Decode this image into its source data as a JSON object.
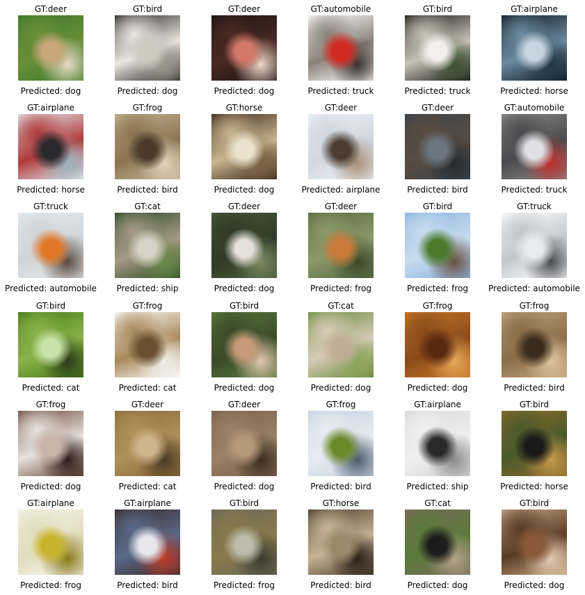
{
  "colors": {
    "background": "#ffffff",
    "text": "#000000"
  },
  "grid": {
    "rows": 6,
    "columns": 6,
    "cells": [
      {
        "gt": "GT:deer",
        "predicted": "Predicted: dog",
        "colors": [
          "#3f7a2a",
          "#c9a77a",
          "#e8dcc8",
          "#6a8f3a"
        ]
      },
      {
        "gt": "GT:bird",
        "predicted": "Predicted: dog",
        "colors": [
          "#2a2a28",
          "#cfcac0",
          "#9a958a",
          "#eae7df"
        ]
      },
      {
        "gt": "GT:deer",
        "predicted": "Predicted: dog",
        "colors": [
          "#1c1412",
          "#d4786a",
          "#f0d8cc",
          "#4a2a22"
        ]
      },
      {
        "gt": "GT:automobile",
        "predicted": "Predicted: truck",
        "colors": [
          "#ffffff",
          "#d02a22",
          "#3a3330",
          "#8a8278"
        ]
      },
      {
        "gt": "GT:bird",
        "predicted": "Predicted: truck",
        "colors": [
          "#1a1d18",
          "#f2f0ea",
          "#3a5030",
          "#c7c2b5"
        ]
      },
      {
        "gt": "GT:airplane",
        "predicted": "Predicted: horse",
        "colors": [
          "#0e1a22",
          "#c8d6e0",
          "#223848",
          "#6c8aa0"
        ]
      },
      {
        "gt": "GT:airplane",
        "predicted": "Predicted: horse",
        "colors": [
          "#e4eef2",
          "#2a2a2c",
          "#9ab4c0",
          "#b03a3a"
        ]
      },
      {
        "gt": "GT:frog",
        "predicted": "Predicted: bird",
        "colors": [
          "#c6b394",
          "#4a3b28",
          "#e2d4bc",
          "#8a7350"
        ]
      },
      {
        "gt": "GT:horse",
        "predicted": "Predicted: dog",
        "colors": [
          "#3a2818",
          "#eae2cc",
          "#7a6040",
          "#c8b48e"
        ]
      },
      {
        "gt": "GT:deer",
        "predicted": "Predicted: airplane",
        "colors": [
          "#eef2f6",
          "#4a3c30",
          "#a89078",
          "#cfd6de"
        ]
      },
      {
        "gt": "GT:deer",
        "predicted": "Predicted: bird",
        "colors": [
          "#3a444c",
          "#6c7680",
          "#222a30",
          "#5a4c40"
        ]
      },
      {
        "gt": "GT:automobile",
        "predicted": "Predicted: truck",
        "colors": [
          "#8a8a8a",
          "#e0e0e2",
          "#c22e2e",
          "#4a4a4c"
        ]
      },
      {
        "gt": "GT:truck",
        "predicted": "Predicted: automobile",
        "colors": [
          "#e8ecef",
          "#e07828",
          "#5a4a40",
          "#cfd4d8"
        ]
      },
      {
        "gt": "GT:cat",
        "predicted": "Predicted: ship",
        "colors": [
          "#2a4a22",
          "#d8d2c6",
          "#6a8a48",
          "#a89a88"
        ]
      },
      {
        "gt": "GT:deer",
        "predicted": "Predicted: dog",
        "colors": [
          "#4a5a3a",
          "#e6e2da",
          "#7a8a62",
          "#2e3a26"
        ]
      },
      {
        "gt": "GT:deer",
        "predicted": "Predicted: frog",
        "colors": [
          "#5a6a40",
          "#c87a3a",
          "#3a4a2a",
          "#8a9a6a"
        ]
      },
      {
        "gt": "GT:bird",
        "predicted": "Predicted: frog",
        "colors": [
          "#8ab4e0",
          "#4a7a2a",
          "#6a5040",
          "#c8dcef"
        ]
      },
      {
        "gt": "GT:truck",
        "predicted": "Predicted: automobile",
        "colors": [
          "#ffffff",
          "#e8eaec",
          "#4a4c50",
          "#c2c6cc"
        ]
      },
      {
        "gt": "GT:bird",
        "predicted": "Predicted: cat",
        "colors": [
          "#4a7a1a",
          "#c8e2a8",
          "#2a3a18",
          "#8ab44a"
        ]
      },
      {
        "gt": "GT:frog",
        "predicted": "Predicted: cat",
        "colors": [
          "#ffffff",
          "#6a5030",
          "#f2efe8",
          "#a8885a"
        ]
      },
      {
        "gt": "GT:bird",
        "predicted": "Predicted: dog",
        "colors": [
          "#5a7a3a",
          "#c89a7a",
          "#e2c8b0",
          "#3a4a28"
        ]
      },
      {
        "gt": "GT:cat",
        "predicted": "Predicted: dog",
        "colors": [
          "#6a8a3a",
          "#bfae96",
          "#8aa45a",
          "#d8ccb8"
        ]
      },
      {
        "gt": "GT:frog",
        "predicted": "Predicted: dog",
        "colors": [
          "#c8782a",
          "#5a2a10",
          "#e8a858",
          "#8a4a1a"
        ]
      },
      {
        "gt": "GT:frog",
        "predicted": "Predicted: bird",
        "colors": [
          "#c2a47a",
          "#3a2c1c",
          "#dcc49c",
          "#8a6c48"
        ]
      },
      {
        "gt": "GT:frog",
        "predicted": "Predicted: dog",
        "colors": [
          "#6a4a3a",
          "#c8b4a8",
          "#2a1c18",
          "#e8e2dc"
        ]
      },
      {
        "gt": "GT:deer",
        "predicted": "Predicted: cat",
        "colors": [
          "#8a6a3a",
          "#d2b48a",
          "#4a3a22",
          "#b0905a"
        ]
      },
      {
        "gt": "GT:deer",
        "predicted": "Predicted: dog",
        "colors": [
          "#7a6048",
          "#b49878",
          "#3a2c20",
          "#9a8266"
        ]
      },
      {
        "gt": "GT:frog",
        "predicted": "Predicted: bird",
        "colors": [
          "#c8d2e0",
          "#6a8a2a",
          "#4a5a6a",
          "#e6ecf2"
        ]
      },
      {
        "gt": "GT:airplane",
        "predicted": "Predicted: ship",
        "colors": [
          "#d8d8d8",
          "#2a2a2a",
          "#8a8a8a",
          "#f0f0f0"
        ]
      },
      {
        "gt": "GT:bird",
        "predicted": "Predicted: horse",
        "colors": [
          "#8a6a2a",
          "#1a1a1a",
          "#c89a4a",
          "#4a5a2a"
        ]
      },
      {
        "gt": "GT:airplane",
        "predicted": "Predicted: frog",
        "colors": [
          "#f4f4ee",
          "#c8b42a",
          "#8a7a1a",
          "#e2dcbc"
        ]
      },
      {
        "gt": "GT:airplane",
        "predicted": "Predicted: bird",
        "colors": [
          "#3a2a2a",
          "#e8e8ec",
          "#c23a2a",
          "#5a6a8a"
        ]
      },
      {
        "gt": "GT:bird",
        "predicted": "Predicted: frog",
        "colors": [
          "#6a6a5a",
          "#bcbcac",
          "#3a3a2e",
          "#8a7a4a"
        ]
      },
      {
        "gt": "GT:horse",
        "predicted": "Predicted: bird",
        "colors": [
          "#4a3a2a",
          "#9a8a6a",
          "#2a2018",
          "#c8b494"
        ]
      },
      {
        "gt": "GT:cat",
        "predicted": "Predicted: dog",
        "colors": [
          "#7a6a5a",
          "#1c1c1c",
          "#b4a48a",
          "#5a7a3a"
        ]
      },
      {
        "gt": "GT:bird",
        "predicted": "Predicted: dog",
        "colors": [
          "#c8a888",
          "#8a5a3a",
          "#e2ccb4",
          "#5a3a22"
        ]
      }
    ]
  }
}
